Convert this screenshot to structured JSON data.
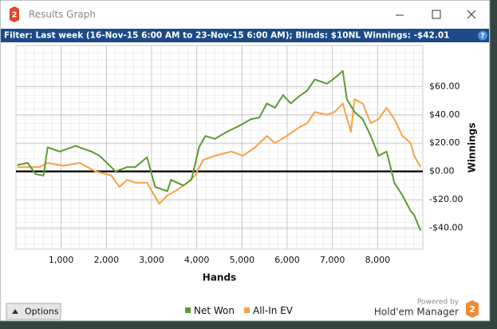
{
  "window": {
    "title": "Results Graph",
    "logo": "2",
    "filter": "Filter: Last week (16-Nov-15 6:00 AM to 23-Nov-15 6:00 AM); Blinds: $10NL  Winnings: -$42.01",
    "help": "?",
    "options_button": "Options",
    "powered_by": "Powered by",
    "brand": "Hold'em Manager"
  },
  "chart_data": {
    "type": "line",
    "x_label": "Hands",
    "y_label": "Winnings",
    "xlim": [
      0,
      9000
    ],
    "ylim": [
      -55,
      89
    ],
    "xticks": [
      {
        "value": 1000,
        "label": "1,000"
      },
      {
        "value": 2000,
        "label": "2,000"
      },
      {
        "value": 3000,
        "label": "3,000"
      },
      {
        "value": 4000,
        "label": "4,000"
      },
      {
        "value": 5000,
        "label": "5,000"
      },
      {
        "value": 6000,
        "label": "6,000"
      },
      {
        "value": 7000,
        "label": "7,000"
      },
      {
        "value": 8000,
        "label": "8,000"
      }
    ],
    "yticks": [
      {
        "value": -40,
        "label": "-$40.00"
      },
      {
        "value": -20,
        "label": "-$20.00"
      },
      {
        "value": 0,
        "label": "$0.00"
      },
      {
        "value": 20,
        "label": "$20.00"
      },
      {
        "value": 40,
        "label": "$40.00"
      },
      {
        "value": 60,
        "label": "$60.00"
      }
    ],
    "grid": true,
    "legend": "bottom",
    "series": [
      {
        "name": "Net Won",
        "color": "#5b9b2f",
        "x": [
          30,
          260,
          435,
          610,
          700,
          965,
          1320,
          1670,
          1850,
          2110,
          2200,
          2460,
          2640,
          2900,
          3080,
          3350,
          3430,
          3700,
          3880,
          4050,
          4190,
          4400,
          4670,
          4930,
          5200,
          5380,
          5550,
          5730,
          5910,
          6080,
          6260,
          6440,
          6610,
          6880,
          7050,
          7230,
          7320,
          7490,
          7670,
          7850,
          8020,
          8200,
          8370,
          8550,
          8730,
          8810,
          8950
        ],
        "values": [
          4.5,
          6,
          -2,
          -3,
          17,
          14,
          18,
          14,
          11,
          3,
          0,
          3,
          3,
          10,
          -11,
          -14,
          -6,
          -10,
          -6,
          17,
          25,
          23,
          28,
          32,
          37,
          38,
          48,
          45,
          54,
          48,
          53,
          57,
          65,
          62,
          66,
          71,
          51,
          42,
          37,
          25,
          11,
          14,
          -8,
          -17,
          -28,
          -31,
          -42
        ]
      },
      {
        "name": "All-In EV",
        "color": "#f5a244",
        "x": [
          30,
          520,
          700,
          1050,
          1410,
          1760,
          2110,
          2290,
          2460,
          2640,
          2900,
          3170,
          3350,
          3520,
          3790,
          3960,
          4140,
          4400,
          4760,
          5020,
          5290,
          5550,
          5730,
          5990,
          6260,
          6440,
          6610,
          6880,
          7050,
          7230,
          7410,
          7490,
          7670,
          7850,
          8020,
          8200,
          8370,
          8550,
          8730,
          8810,
          8950
        ],
        "values": [
          3,
          3,
          6,
          4,
          6,
          0,
          -3,
          -11,
          -6,
          -8,
          -8,
          -23,
          -17,
          -14,
          -8,
          -3,
          8,
          11,
          14,
          11,
          17,
          25,
          20,
          25,
          31,
          34,
          42,
          40,
          42,
          48,
          28,
          51,
          48,
          34,
          37,
          45,
          37,
          25,
          20,
          11,
          3
        ]
      }
    ]
  }
}
